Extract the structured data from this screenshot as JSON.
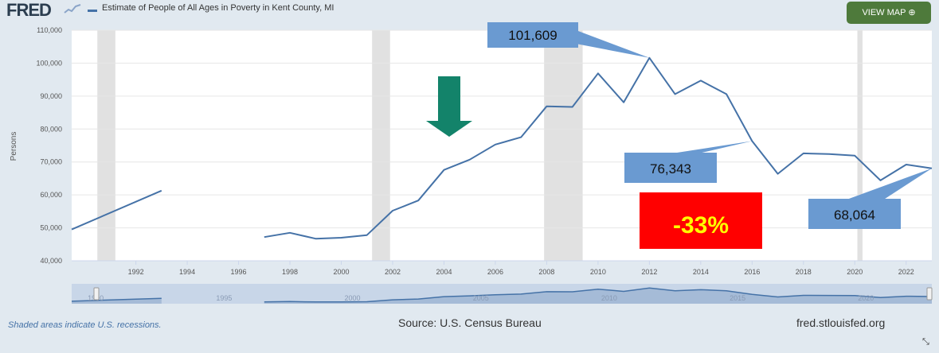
{
  "header": {
    "logo": "FRED",
    "legend_label": "Estimate of People of All Ages in Poverty in Kent County, MI",
    "view_map_label": "VIEW MAP ⊕",
    "spark_icon": "line-spark-icon"
  },
  "chart_data": {
    "type": "line",
    "title": "",
    "xlabel": "",
    "ylabel": "Persons",
    "xlim": [
      1989.5,
      2023
    ],
    "ylim": [
      40000,
      110000
    ],
    "y_ticks": [
      40000,
      50000,
      60000,
      70000,
      80000,
      90000,
      100000,
      110000
    ],
    "y_tick_labels": [
      "40,000",
      "50,000",
      "60,000",
      "70,000",
      "80,000",
      "90,000",
      "100,000",
      "110,000"
    ],
    "x_ticks": [
      1992,
      1994,
      1996,
      1998,
      2000,
      2002,
      2004,
      2006,
      2008,
      2010,
      2012,
      2014,
      2016,
      2018,
      2020,
      2022
    ],
    "x_tick_labels": [
      "1992",
      "1994",
      "1996",
      "1998",
      "2000",
      "2002",
      "2004",
      "2006",
      "2008",
      "2010",
      "2012",
      "2014",
      "2016",
      "2018",
      "2020",
      "2022"
    ],
    "grid": true,
    "series": [
      {
        "name": "Estimate of People of All Ages in Poverty in Kent County, MI",
        "color": "#4572a7",
        "segments": [
          [
            [
              1989.5,
              49500
            ],
            [
              1993,
              61300
            ]
          ],
          [
            [
              1997,
              47200
            ],
            [
              1998,
              48500
            ],
            [
              1999,
              46700
            ],
            [
              2000,
              47000
            ],
            [
              2001,
              47800
            ],
            [
              2002,
              55200
            ],
            [
              2003,
              58300
            ],
            [
              2004,
              67600
            ],
            [
              2005,
              70700
            ],
            [
              2006,
              75300
            ],
            [
              2007,
              77500
            ],
            [
              2008,
              86900
            ],
            [
              2009,
              86700
            ],
            [
              2010,
              96900
            ],
            [
              2011,
              88100
            ],
            [
              2012,
              101609
            ],
            [
              2013,
              90600
            ],
            [
              2014,
              94700
            ],
            [
              2015,
              90600
            ],
            [
              2016,
              76343
            ],
            [
              2017,
              66400
            ],
            [
              2018,
              72600
            ],
            [
              2019,
              72400
            ],
            [
              2020,
              71900
            ],
            [
              2021,
              64400
            ],
            [
              2022,
              69200
            ],
            [
              2023,
              68064
            ]
          ]
        ]
      }
    ],
    "recessions": [
      [
        1990.5,
        1991.2
      ],
      [
        2001.2,
        2001.9
      ],
      [
        2007.9,
        2009.4
      ],
      [
        2020.1,
        2020.3
      ]
    ],
    "callouts": [
      {
        "label": "101,609",
        "x": 2012,
        "y": 101609
      },
      {
        "label": "76,343",
        "x": 2016,
        "y": 76343
      },
      {
        "label": "68,064",
        "x": 2023,
        "y": 68064
      }
    ],
    "change_label": "-33%",
    "arrow_color": "#13836a",
    "callout_color": "#6a9ad1",
    "change_box_color": "#ff0000",
    "change_text_color": "#ffff00",
    "navigator": {
      "tick_labels": [
        "1990",
        "1995",
        "2000",
        "2005",
        "2010",
        "2015",
        "2020"
      ],
      "tick_years": [
        1990,
        1995,
        2000,
        2005,
        2010,
        2015,
        2020
      ],
      "xlim": [
        1989.5,
        2023
      ]
    }
  },
  "footer": {
    "note": "Shaded areas indicate U.S. recessions.",
    "source": "Source: U.S. Census Bureau",
    "site": "fred.stlouisfed.org",
    "expand_icon": "⤡"
  }
}
